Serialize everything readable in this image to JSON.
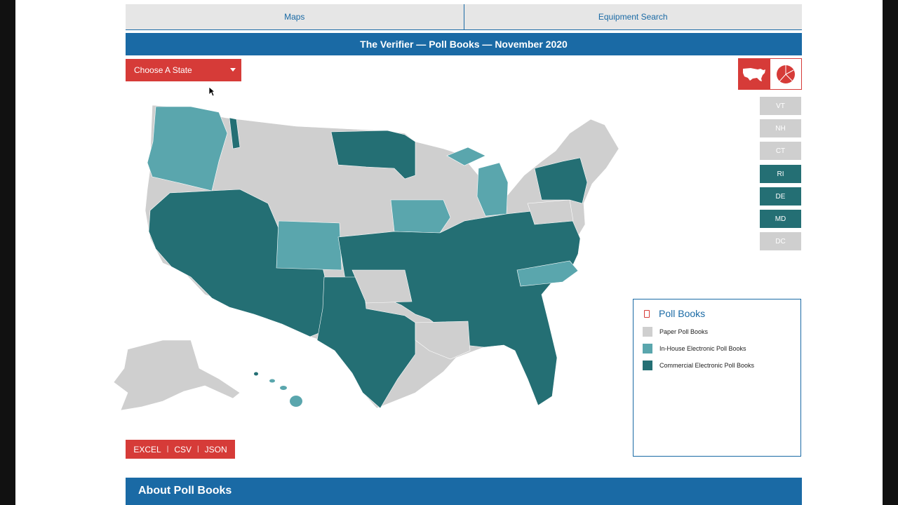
{
  "nav": {
    "tabs": [
      {
        "label": "Maps"
      },
      {
        "label": "Equipment Search"
      }
    ]
  },
  "header": {
    "title": "The Verifier — Poll Books — November 2020"
  },
  "state_select": {
    "value": "Choose A State"
  },
  "view_toggle": {
    "map_icon": "usa-map-icon",
    "chart_icon": "pie-chart-icon"
  },
  "small_states": [
    {
      "label": "VT",
      "category": "paper"
    },
    {
      "label": "NH",
      "category": "paper"
    },
    {
      "label": "CT",
      "category": "paper"
    },
    {
      "label": "RI",
      "category": "commercial"
    },
    {
      "label": "DE",
      "category": "commercial"
    },
    {
      "label": "MD",
      "category": "commercial"
    },
    {
      "label": "DC",
      "category": "paper"
    }
  ],
  "legend": {
    "title": "Poll Books",
    "items": [
      {
        "label": "Paper Poll Books",
        "color": "#cfcfcf"
      },
      {
        "label": "In-House Electronic Poll Books",
        "color": "#5aa6ad"
      },
      {
        "label": "Commercial Electronic Poll Books",
        "color": "#246f74"
      }
    ]
  },
  "colors": {
    "accent_red": "#d63b38",
    "brand_blue": "#1a6aa5",
    "paper": "#cfcfcf",
    "in_house": "#5aa6ad",
    "commercial": "#246f74"
  },
  "downloads": [
    {
      "label": "EXCEL"
    },
    {
      "label": "CSV"
    },
    {
      "label": "JSON"
    }
  ],
  "about": {
    "title": "About Poll Books"
  }
}
